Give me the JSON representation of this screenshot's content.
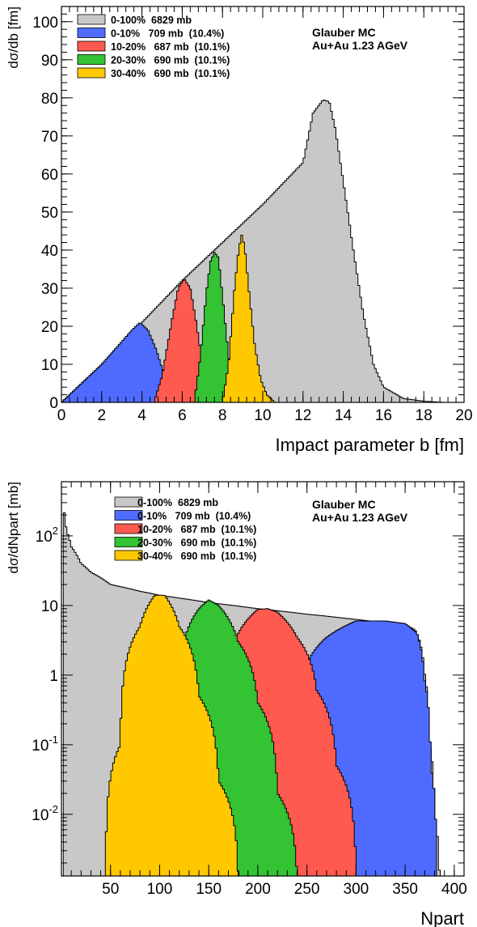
{
  "colors": {
    "total": "#c8c8c8",
    "c0_10": "#4f6bff",
    "c10_20": "#ff5a4f",
    "c20_30": "#33c333",
    "c30_40": "#ffc800"
  },
  "chart_data": [
    {
      "type": "histogram",
      "xlabel": "Impact parameter b [fm]",
      "ylabel": "dσ/db [fm]",
      "xlim": [
        0,
        20
      ],
      "ylim": [
        0,
        104
      ],
      "xticks": [
        "0",
        "2",
        "4",
        "6",
        "8",
        "10",
        "12",
        "14",
        "16",
        "18",
        "20"
      ],
      "yticks": [
        "0",
        "10",
        "20",
        "30",
        "40",
        "50",
        "60",
        "70",
        "80",
        "90",
        "100"
      ],
      "legend_position": "top-left",
      "annotation": [
        "Glauber MC",
        "Au+Au 1.23 AGeV"
      ],
      "series": [
        {
          "name": "0-100%  6829 mb",
          "color_key": "total",
          "x": [
            0,
            2,
            4,
            6,
            8,
            10,
            12,
            12.5,
            13,
            13.3,
            13.6,
            14,
            14.5,
            15,
            15.5,
            16,
            17,
            18,
            19
          ],
          "y": [
            0,
            10,
            21,
            32,
            42,
            52,
            63,
            76,
            79.5,
            79,
            72,
            58,
            40,
            23,
            10,
            4,
            1,
            0.3,
            0
          ]
        },
        {
          "name": "0-10%   709 mb  (10.4%)",
          "color_key": "c0_10",
          "x": [
            0,
            1,
            2,
            3,
            3.5,
            3.9,
            4.3,
            4.7,
            5,
            5.5,
            6,
            6.5,
            7
          ],
          "y": [
            0,
            5,
            10,
            16,
            19,
            21,
            19,
            14,
            9,
            4,
            1.5,
            0.5,
            0
          ]
        },
        {
          "name": "10-20%   687 mb  (10.1%)",
          "color_key": "c10_20",
          "x": [
            4.6,
            5,
            5.5,
            5.8,
            6.1,
            6.4,
            6.7,
            7,
            7.3,
            7.6
          ],
          "y": [
            0,
            7,
            22,
            30,
            32.5,
            30,
            21,
            10,
            3,
            0
          ]
        },
        {
          "name": "20-30%   690 mb  (10.1%)",
          "color_key": "c20_30",
          "x": [
            6.6,
            6.9,
            7.2,
            7.4,
            7.6,
            7.8,
            8,
            8.3,
            8.6,
            8.9
          ],
          "y": [
            0,
            12,
            29,
            37,
            39.5,
            38,
            28,
            12,
            3,
            0
          ]
        },
        {
          "name": "30-40%   690 mb  (10.1%)",
          "color_key": "c30_40",
          "x": [
            8,
            8.3,
            8.6,
            8.8,
            8.95,
            9.1,
            9.3,
            9.6,
            9.9,
            10.2,
            10.6
          ],
          "y": [
            0,
            10,
            30,
            40,
            44,
            41,
            30,
            15,
            6,
            2,
            0
          ]
        }
      ]
    },
    {
      "type": "histogram",
      "xlabel": "Npart",
      "ylabel": "dσ/dNpart [mb]",
      "yscale": "log",
      "xlim": [
        0,
        410
      ],
      "ylim": [
        0.0013,
        600
      ],
      "xticks": [
        "50",
        "100",
        "150",
        "200",
        "250",
        "300",
        "350",
        "400"
      ],
      "yticks": [
        "10^-2",
        "10^-1",
        "1",
        "10",
        "10^2"
      ],
      "legend_position": "top-center",
      "annotation": [
        "Glauber MC",
        "Au+Au 1.23 AGeV"
      ],
      "series": [
        {
          "name": "0-100%  6829 mb",
          "color_key": "total",
          "x": [
            2,
            5,
            10,
            20,
            30,
            50,
            80,
            100,
            150,
            200,
            250,
            300,
            350,
            360,
            365,
            370,
            375,
            380,
            385
          ],
          "y": [
            250,
            120,
            70,
            40,
            30,
            20,
            16,
            14,
            11,
            9,
            7.5,
            6.3,
            5.2,
            4.5,
            3,
            1,
            0.1,
            0.01,
            0.0013
          ]
        },
        {
          "name": "0-10%   709 mb  (10.4%)",
          "color_key": "c0_10",
          "x": [
            170,
            190,
            210,
            230,
            250,
            270,
            300,
            330,
            350,
            362,
            370,
            376,
            382
          ],
          "y": [
            0.0013,
            0.005,
            0.05,
            0.3,
            1.5,
            3.5,
            6,
            6,
            5.5,
            4,
            0.8,
            0.05,
            0.0013
          ]
        },
        {
          "name": "10-20%   687 mb  (10.1%)",
          "color_key": "c10_20",
          "x": [
            118,
            140,
            160,
            180,
            200,
            210,
            220,
            240,
            260,
            280,
            300
          ],
          "y": [
            0.0013,
            0.05,
            0.8,
            4,
            8.8,
            9,
            8,
            3.5,
            0.6,
            0.05,
            0.0013
          ]
        },
        {
          "name": "20-30%   690 mb  (10.1%)",
          "color_key": "c20_30",
          "x": [
            82,
            100,
            120,
            140,
            150,
            160,
            180,
            200,
            220,
            240
          ],
          "y": [
            0.0013,
            0.05,
            1.2,
            9,
            12,
            10,
            3,
            0.4,
            0.02,
            0.0013
          ]
        },
        {
          "name": "30-40%   690 mb  (10.1%)",
          "color_key": "c30_40",
          "x": [
            45,
            60,
            80,
            95,
            105,
            120,
            140,
            160,
            180
          ],
          "y": [
            0.0013,
            0.1,
            5,
            14,
            14,
            5,
            0.5,
            0.03,
            0.0013
          ]
        }
      ]
    }
  ]
}
